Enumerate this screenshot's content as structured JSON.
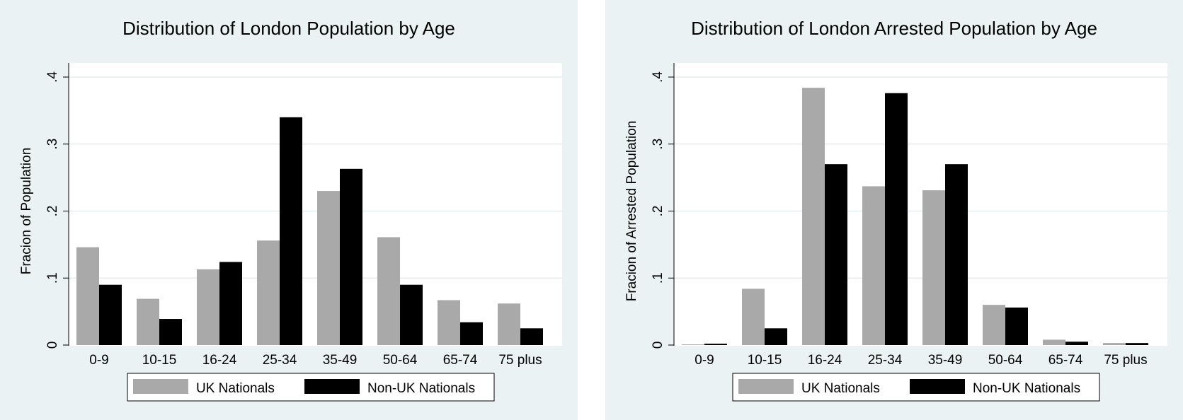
{
  "chart_data": [
    {
      "type": "bar",
      "title": "Distribution of London Population by Age",
      "xlabel": "",
      "ylabel": "Fracion of Population",
      "ylim": [
        0,
        0.4
      ],
      "yticks": [
        0,
        0.1,
        0.2,
        0.3,
        0.4
      ],
      "ytick_labels": [
        "0",
        ".1",
        ".2",
        ".3",
        ".4"
      ],
      "grid": true,
      "legend_position": "bottom",
      "categories": [
        "0-9",
        "10-15",
        "16-24",
        "25-34",
        "35-49",
        "50-64",
        "65-74",
        "75 plus"
      ],
      "series": [
        {
          "name": "UK Nationals",
          "color": "#a9a9a9",
          "values": [
            0.146,
            0.069,
            0.113,
            0.156,
            0.23,
            0.161,
            0.067,
            0.062
          ]
        },
        {
          "name": "Non-UK Nationals",
          "color": "#000000",
          "values": [
            0.09,
            0.039,
            0.124,
            0.34,
            0.263,
            0.09,
            0.034,
            0.025
          ]
        }
      ]
    },
    {
      "type": "bar",
      "title": "Distribution of London Arrested Population by Age",
      "xlabel": "",
      "ylabel": "Fracion of Arrested Population",
      "ylim": [
        0,
        0.4
      ],
      "yticks": [
        0,
        0.1,
        0.2,
        0.3,
        0.4
      ],
      "ytick_labels": [
        "0",
        ".1",
        ".2",
        ".3",
        ".4"
      ],
      "grid": true,
      "legend_position": "bottom",
      "categories": [
        "0-9",
        "10-15",
        "16-24",
        "25-34",
        "35-49",
        "50-64",
        "65-74",
        "75 plus"
      ],
      "series": [
        {
          "name": "UK Nationals",
          "color": "#a9a9a9",
          "values": [
            0.001,
            0.084,
            0.384,
            0.237,
            0.231,
            0.06,
            0.008,
            0.003
          ]
        },
        {
          "name": "Non-UK Nationals",
          "color": "#000000",
          "values": [
            0.002,
            0.025,
            0.27,
            0.376,
            0.27,
            0.056,
            0.005,
            0.003
          ]
        }
      ]
    }
  ]
}
